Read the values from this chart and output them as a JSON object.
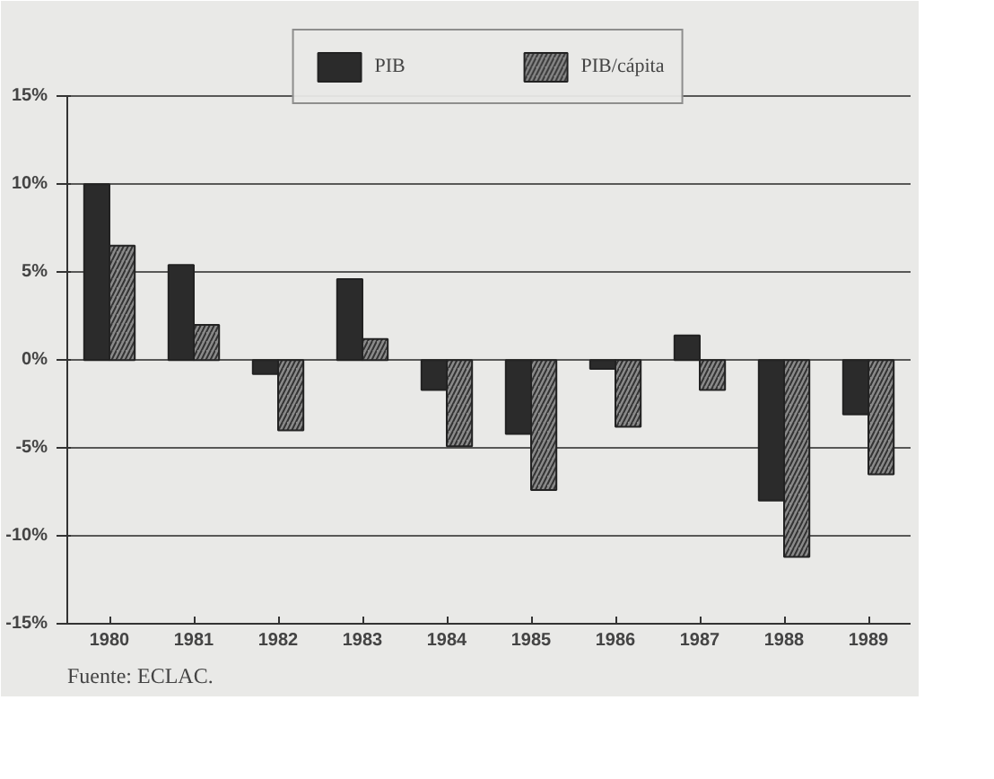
{
  "chart_data": {
    "type": "bar",
    "categories": [
      "1980",
      "1981",
      "1982",
      "1983",
      "1984",
      "1985",
      "1986",
      "1987",
      "1988",
      "1989"
    ],
    "series": [
      {
        "name": "PIB",
        "color": "#2b2b2b",
        "values": [
          10.0,
          5.4,
          -0.8,
          4.6,
          -1.7,
          -4.2,
          -0.5,
          1.4,
          -8.0,
          -3.1
        ]
      },
      {
        "name": "PIB/cápita",
        "color": "#8a8a8a",
        "values": [
          6.5,
          2.0,
          -4.0,
          1.2,
          -4.9,
          -7.4,
          -3.8,
          -1.7,
          -11.2,
          -6.5
        ]
      }
    ],
    "ylim": [
      -15,
      15
    ],
    "yticks": [
      {
        "value": -15,
        "label": "-15%"
      },
      {
        "value": -10,
        "label": "-10%"
      },
      {
        "value": -5,
        "label": "-5%"
      },
      {
        "value": 0,
        "label": "0%"
      },
      {
        "value": 5,
        "label": "5%"
      },
      {
        "value": 10,
        "label": "10%"
      },
      {
        "value": 15,
        "label": "15%"
      }
    ],
    "grid": "y",
    "legend": "top",
    "annotations": [
      "Fuente:  ECLAC."
    ]
  }
}
